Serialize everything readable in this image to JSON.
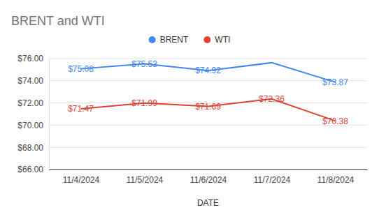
{
  "chart_data": {
    "type": "line",
    "title": "BRENT and WTI",
    "x_label": "DATE",
    "categories": [
      "11/4/2024",
      "11/5/2024",
      "11/6/2024",
      "11/7/2024",
      "11/8/2024"
    ],
    "series": [
      {
        "name": "BRENT",
        "color": "#4285f4",
        "values": [
          75.08,
          75.53,
          74.92,
          75.63,
          73.87
        ],
        "value_labels": [
          "$75.08",
          "$75.53",
          "$74.92",
          null,
          "$73.87"
        ]
      },
      {
        "name": "WTI",
        "color": "#db4437",
        "values": [
          71.47,
          71.99,
          71.69,
          72.36,
          70.38
        ],
        "value_labels": [
          "$71.47",
          "$71.99",
          "$71.69",
          "$72.36",
          "$70.38"
        ]
      }
    ],
    "ylim": [
      66,
      76
    ],
    "yticks": [
      {
        "value": 66,
        "label": "$66.00"
      },
      {
        "value": 68,
        "label": "$68.00"
      },
      {
        "value": 70,
        "label": "$70.00"
      },
      {
        "value": 72,
        "label": "$72.00"
      },
      {
        "value": 74,
        "label": "$74.00"
      },
      {
        "value": 76,
        "label": "$76.00"
      }
    ],
    "grid": true,
    "legend": "top",
    "data_labels": true
  }
}
